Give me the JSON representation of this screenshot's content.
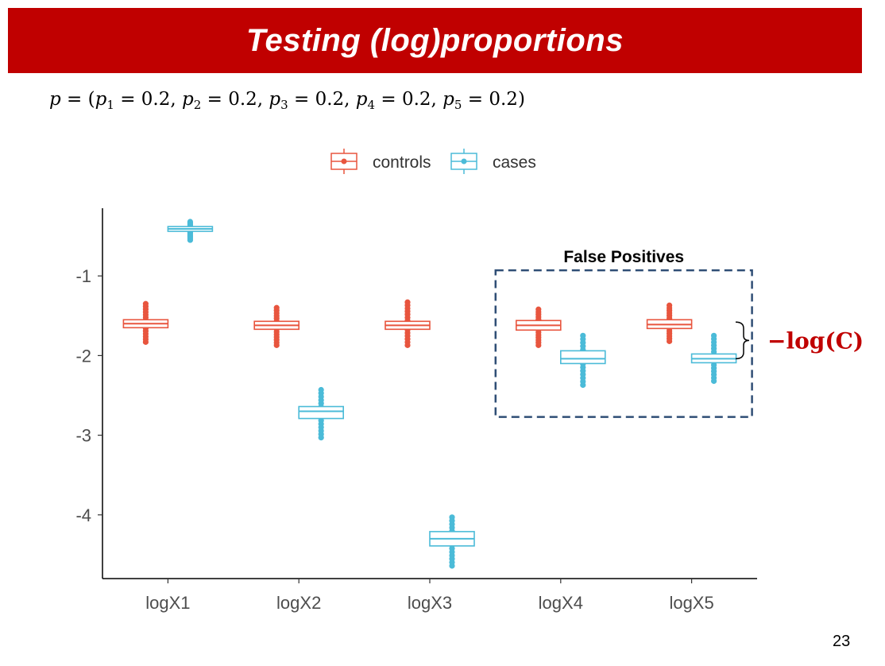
{
  "slide": {
    "title": "Testing (log)proportions",
    "page_number": "23",
    "formula": {
      "lhs": "p",
      "terms": [
        {
          "var": "p",
          "sub": "1",
          "value": "0.2"
        },
        {
          "var": "p",
          "sub": "2",
          "value": "0.2"
        },
        {
          "var": "p",
          "sub": "3",
          "value": "0.2"
        },
        {
          "var": "p",
          "sub": "4",
          "value": "0.2"
        },
        {
          "var": "p",
          "sub": "5",
          "value": "0.2"
        }
      ]
    }
  },
  "chart_data": {
    "type": "box",
    "categories": [
      "logX1",
      "logX2",
      "logX3",
      "logX4",
      "logX5"
    ],
    "ylim": [
      -4.8,
      -0.15
    ],
    "yticks": [
      -1,
      -2,
      -3,
      -4
    ],
    "ytick_labels": [
      "-1",
      "-2",
      "-3",
      "-4"
    ],
    "legend": {
      "position": "top",
      "entries": [
        "controls",
        "cases"
      ]
    },
    "series": [
      {
        "name": "controls",
        "color": "#e8553e",
        "boxes": [
          {
            "q1": -1.65,
            "median": -1.6,
            "q3": -1.55,
            "min": -1.83,
            "max": -1.35
          },
          {
            "q1": -1.67,
            "median": -1.62,
            "q3": -1.57,
            "min": -1.87,
            "max": -1.4
          },
          {
            "q1": -1.67,
            "median": -1.62,
            "q3": -1.57,
            "min": -1.87,
            "max": -1.33
          },
          {
            "q1": -1.68,
            "median": -1.62,
            "q3": -1.56,
            "min": -1.87,
            "max": -1.42
          },
          {
            "q1": -1.66,
            "median": -1.61,
            "q3": -1.55,
            "min": -1.82,
            "max": -1.37
          }
        ]
      },
      {
        "name": "cases",
        "color": "#4bbbd8",
        "boxes": [
          {
            "q1": -0.44,
            "median": -0.41,
            "q3": -0.38,
            "min": -0.55,
            "max": -0.32
          },
          {
            "q1": -2.79,
            "median": -2.7,
            "q3": -2.64,
            "min": -3.03,
            "max": -2.43
          },
          {
            "q1": -4.39,
            "median": -4.3,
            "q3": -4.21,
            "min": -4.64,
            "max": -4.03
          },
          {
            "q1": -2.1,
            "median": -2.04,
            "q3": -1.94,
            "min": -2.37,
            "max": -1.75
          },
          {
            "q1": -2.09,
            "median": -2.04,
            "q3": -1.98,
            "min": -2.32,
            "max": -1.75
          }
        ]
      }
    ],
    "annotations": {
      "highlight_box": {
        "label": "False Positives",
        "categories": [
          "logX4",
          "logX5"
        ],
        "y_range": [
          -2.77,
          -0.93
        ]
      },
      "brace_label": "−log(C)",
      "brace_range": [
        -1.6,
        -2.02
      ]
    }
  },
  "colors": {
    "title_bar": "#c00000",
    "title_text": "#ffffff",
    "controls": "#e8553e",
    "cases": "#4bbbd8",
    "highlight_box": "#2f4e75",
    "brace_label": "#c00000"
  }
}
